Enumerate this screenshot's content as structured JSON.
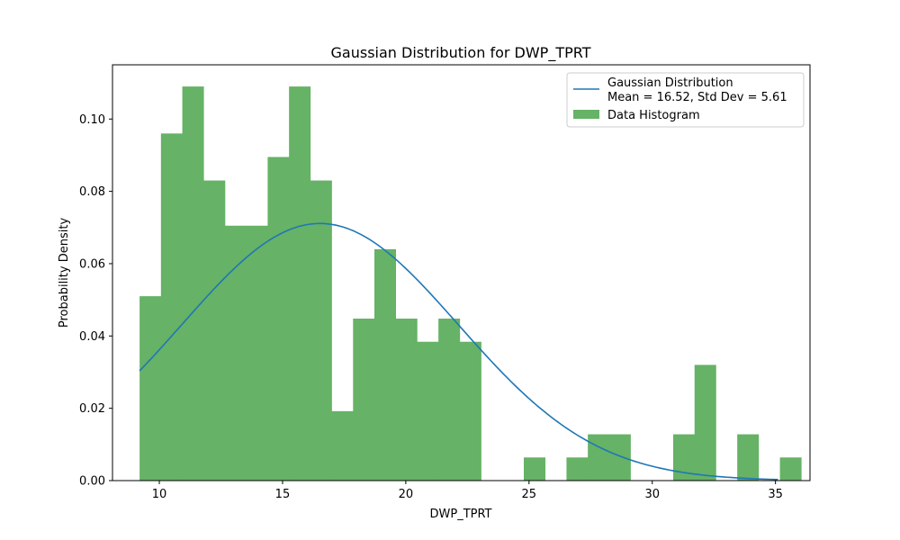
{
  "chart_data": {
    "type": "bar",
    "title": "Gaussian Distribution for DWP_TPRT",
    "xlabel": "DWP_TPRT",
    "ylabel": "Probability Density",
    "xlim": [
      8.1,
      36.4
    ],
    "ylim": [
      0.0,
      0.115
    ],
    "xticks": [
      10,
      15,
      20,
      25,
      30,
      35
    ],
    "yticks": [
      0.0,
      0.02,
      0.04,
      0.06,
      0.08,
      0.1
    ],
    "xtick_labels": [
      "10",
      "15",
      "20",
      "25",
      "30",
      "35"
    ],
    "ytick_labels": [
      "0.00",
      "0.02",
      "0.04",
      "0.06",
      "0.08",
      "0.10"
    ],
    "grid": false,
    "legend_position": "top-right",
    "histogram": {
      "name": "Data Histogram",
      "color": "#66b266",
      "bin_start": 9.2,
      "bin_width": 0.866,
      "values": [
        0.051,
        0.096,
        0.109,
        0.083,
        0.0705,
        0.0705,
        0.0895,
        0.109,
        0.083,
        0.0192,
        0.0448,
        0.064,
        0.0448,
        0.0384,
        0.0448,
        0.0384,
        0.0,
        0.0,
        0.0064,
        0.0,
        0.0064,
        0.0128,
        0.0128,
        0.0,
        0.0,
        0.0128,
        0.032,
        0.0,
        0.0128,
        0.0,
        0.0064
      ]
    },
    "gaussian": {
      "name_line1": "Gaussian Distribution",
      "name_line2": "Mean = 16.52, Std Dev = 5.61",
      "mean": 16.52,
      "std": 5.61,
      "x_start": 9.2,
      "x_end": 35.1,
      "color": "#1f77b4"
    }
  }
}
